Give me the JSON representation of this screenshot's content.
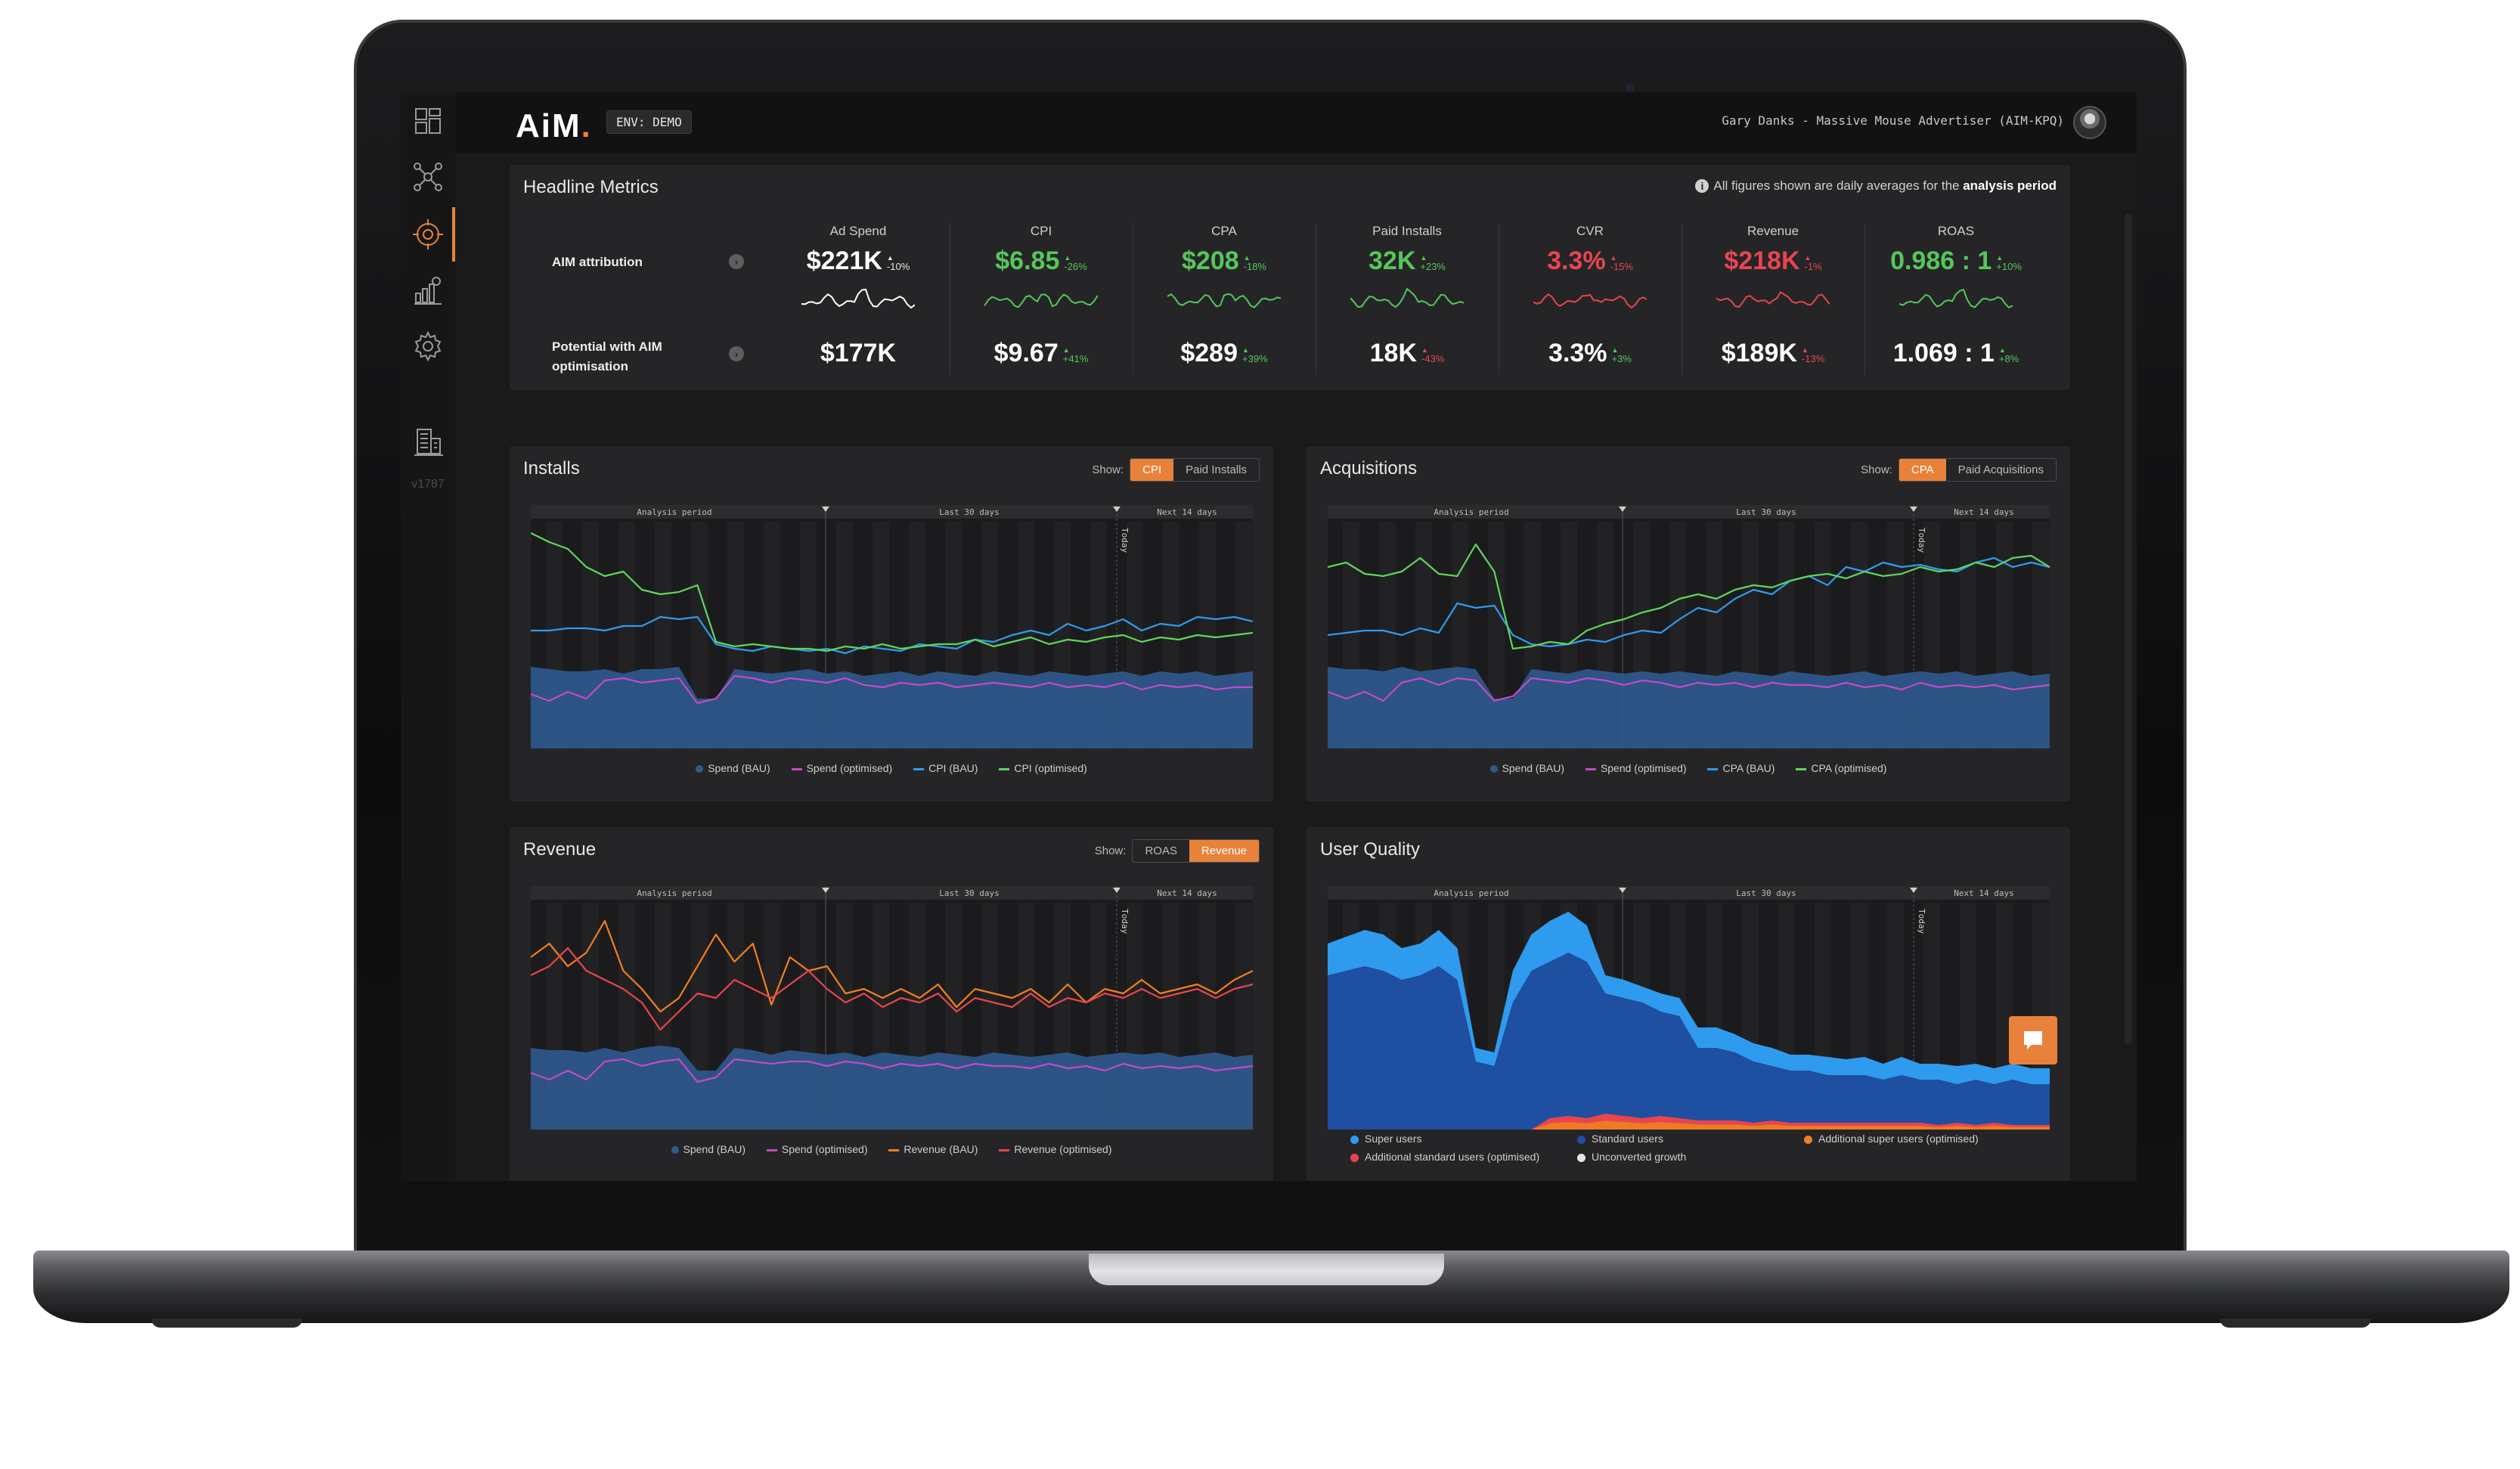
{
  "app": {
    "logo": "AiM",
    "env_badge": "ENV: DEMO",
    "user": "Gary Danks - Massive Mouse Advertiser (AIM-KPQ)",
    "version": "v1787"
  },
  "sidebar": {
    "icons": [
      "dashboard-icon",
      "network-icon",
      "target-icon",
      "analytics-icon",
      "settings-icon",
      "building-icon"
    ],
    "active_index": 2
  },
  "headline": {
    "title": "Headline Metrics",
    "info_prefix": "All figures shown are daily averages for the",
    "info_bold": "analysis period",
    "rows": [
      "AIM attribution",
      "Potential with AIM optimisation"
    ],
    "metrics": [
      {
        "label": "Ad Spend",
        "attr": "$221K",
        "attr_delta": "-10%",
        "attr_dir": "up",
        "attr_color": "white",
        "pot": "$177K",
        "pot_delta": "",
        "pot_dir": "",
        "pot_color": "white"
      },
      {
        "label": "CPI",
        "attr": "$6.85",
        "attr_delta": "-26%",
        "attr_dir": "up",
        "attr_color": "green",
        "pot": "$9.67",
        "pot_delta": "+41%",
        "pot_dir": "up",
        "pot_color": "white"
      },
      {
        "label": "CPA",
        "attr": "$208",
        "attr_delta": "-18%",
        "attr_dir": "up",
        "attr_color": "green",
        "pot": "$289",
        "pot_delta": "+39%",
        "pot_dir": "up",
        "pot_color": "white"
      },
      {
        "label": "Paid Installs",
        "attr": "32K",
        "attr_delta": "+23%",
        "attr_dir": "up",
        "attr_color": "green",
        "pot": "18K",
        "pot_delta": "-43%",
        "pot_dir": "up",
        "pot_color": "white"
      },
      {
        "label": "CVR",
        "attr": "3.3%",
        "attr_delta": "-15%",
        "attr_dir": "up",
        "attr_color": "red",
        "pot": "3.3%",
        "pot_delta": "+3%",
        "pot_dir": "up",
        "pot_color": "white"
      },
      {
        "label": "Revenue",
        "attr": "$218K",
        "attr_delta": "-1%",
        "attr_dir": "up",
        "attr_color": "red",
        "pot": "$189K",
        "pot_delta": "-13%",
        "pot_dir": "up",
        "pot_color": "white"
      },
      {
        "label": "ROAS",
        "attr": "0.986 : 1",
        "attr_delta": "+10%",
        "attr_dir": "up",
        "attr_color": "green",
        "pot": "1.069 : 1",
        "pot_delta": "+8%",
        "pot_dir": "up",
        "pot_color": "white"
      }
    ]
  },
  "chart_data": [
    {
      "type": "area",
      "title": "Installs",
      "show_label": "Show:",
      "toggle": [
        "CPI",
        "Paid Installs"
      ],
      "toggle_active": 0,
      "periods": [
        "Analysis period",
        "Last 30 days",
        "Next 14 days"
      ],
      "today_label": "Today",
      "legend": [
        "Spend (BAU)",
        "Spend (optimised)",
        "CPI (BAU)",
        "CPI (optimised)"
      ],
      "series": [
        {
          "name": "Spend (BAU)",
          "color": "#2f5a8f",
          "kind": "area",
          "values": [
            0.36,
            0.35,
            0.34,
            0.34,
            0.35,
            0.33,
            0.35,
            0.35,
            0.36,
            0.22,
            0.22,
            0.35,
            0.34,
            0.33,
            0.34,
            0.35,
            0.33,
            0.34,
            0.32,
            0.33,
            0.34,
            0.32,
            0.34,
            0.33,
            0.32,
            0.34,
            0.33,
            0.32,
            0.34,
            0.33,
            0.32,
            0.33,
            0.34,
            0.32,
            0.34,
            0.33,
            0.34,
            0.32,
            0.33,
            0.34
          ]
        },
        {
          "name": "Spend (optimised)",
          "color": "#c24ac7",
          "kind": "line",
          "values": [
            0.24,
            0.21,
            0.25,
            0.22,
            0.3,
            0.31,
            0.29,
            0.3,
            0.31,
            0.2,
            0.22,
            0.32,
            0.31,
            0.29,
            0.31,
            0.3,
            0.29,
            0.31,
            0.28,
            0.27,
            0.29,
            0.28,
            0.29,
            0.27,
            0.28,
            0.29,
            0.28,
            0.27,
            0.29,
            0.27,
            0.28,
            0.27,
            0.29,
            0.26,
            0.28,
            0.27,
            0.28,
            0.26,
            0.27,
            0.27
          ]
        },
        {
          "name": "CPI (BAU)",
          "color": "#2f9bef",
          "kind": "line",
          "values": [
            0.52,
            0.52,
            0.53,
            0.53,
            0.52,
            0.54,
            0.54,
            0.58,
            0.57,
            0.58,
            0.46,
            0.44,
            0.43,
            0.45,
            0.44,
            0.43,
            0.44,
            0.42,
            0.45,
            0.44,
            0.43,
            0.46,
            0.45,
            0.44,
            0.48,
            0.47,
            0.5,
            0.52,
            0.5,
            0.55,
            0.52,
            0.54,
            0.57,
            0.52,
            0.55,
            0.54,
            0.58,
            0.57,
            0.58,
            0.56
          ]
        },
        {
          "name": "CPI (optimised)",
          "color": "#5fd65b",
          "kind": "line",
          "values": [
            0.95,
            0.91,
            0.88,
            0.8,
            0.76,
            0.78,
            0.7,
            0.68,
            0.69,
            0.72,
            0.47,
            0.45,
            0.46,
            0.45,
            0.44,
            0.44,
            0.43,
            0.45,
            0.44,
            0.46,
            0.44,
            0.45,
            0.46,
            0.46,
            0.48,
            0.45,
            0.47,
            0.49,
            0.46,
            0.48,
            0.47,
            0.49,
            0.5,
            0.47,
            0.49,
            0.48,
            0.5,
            0.49,
            0.5,
            0.51
          ]
        }
      ]
    },
    {
      "type": "area",
      "title": "Acquisitions",
      "show_label": "Show:",
      "toggle": [
        "CPA",
        "Paid Acquisitions"
      ],
      "toggle_active": 0,
      "periods": [
        "Analysis period",
        "Last 30 days",
        "Next 14 days"
      ],
      "today_label": "Today",
      "legend": [
        "Spend (BAU)",
        "Spend (optimised)",
        "CPA (BAU)",
        "CPA (optimised)"
      ],
      "series": [
        {
          "name": "Spend (BAU)",
          "color": "#2f5a8f",
          "kind": "area",
          "values": [
            0.36,
            0.35,
            0.35,
            0.34,
            0.36,
            0.34,
            0.35,
            0.36,
            0.35,
            0.22,
            0.22,
            0.35,
            0.34,
            0.33,
            0.35,
            0.34,
            0.33,
            0.34,
            0.33,
            0.34,
            0.33,
            0.32,
            0.34,
            0.33,
            0.32,
            0.34,
            0.33,
            0.32,
            0.33,
            0.34,
            0.32,
            0.33,
            0.34,
            0.33,
            0.34,
            0.32,
            0.33,
            0.34,
            0.32,
            0.33
          ]
        },
        {
          "name": "Spend (optimised)",
          "color": "#c24ac7",
          "kind": "line",
          "values": [
            0.25,
            0.22,
            0.25,
            0.21,
            0.29,
            0.31,
            0.28,
            0.31,
            0.3,
            0.21,
            0.23,
            0.31,
            0.3,
            0.29,
            0.31,
            0.3,
            0.28,
            0.3,
            0.29,
            0.27,
            0.29,
            0.28,
            0.29,
            0.27,
            0.29,
            0.28,
            0.28,
            0.27,
            0.29,
            0.27,
            0.28,
            0.26,
            0.29,
            0.27,
            0.28,
            0.27,
            0.28,
            0.26,
            0.27,
            0.28
          ]
        },
        {
          "name": "CPA (BAU)",
          "color": "#2f9bef",
          "kind": "line",
          "values": [
            0.5,
            0.51,
            0.52,
            0.52,
            0.5,
            0.53,
            0.51,
            0.64,
            0.62,
            0.63,
            0.5,
            0.46,
            0.45,
            0.46,
            0.48,
            0.47,
            0.5,
            0.52,
            0.51,
            0.57,
            0.62,
            0.6,
            0.66,
            0.7,
            0.68,
            0.74,
            0.76,
            0.72,
            0.8,
            0.78,
            0.82,
            0.8,
            0.81,
            0.79,
            0.78,
            0.82,
            0.84,
            0.8,
            0.82,
            0.8
          ]
        },
        {
          "name": "CPA (optimised)",
          "color": "#5fd65b",
          "kind": "line",
          "values": [
            0.8,
            0.82,
            0.77,
            0.76,
            0.78,
            0.84,
            0.77,
            0.76,
            0.9,
            0.78,
            0.44,
            0.45,
            0.47,
            0.46,
            0.52,
            0.55,
            0.57,
            0.6,
            0.62,
            0.66,
            0.68,
            0.66,
            0.7,
            0.72,
            0.71,
            0.74,
            0.76,
            0.77,
            0.75,
            0.78,
            0.76,
            0.77,
            0.8,
            0.78,
            0.79,
            0.82,
            0.8,
            0.84,
            0.85,
            0.8
          ]
        }
      ]
    },
    {
      "type": "area",
      "title": "Revenue",
      "show_label": "Show:",
      "toggle": [
        "ROAS",
        "Revenue"
      ],
      "toggle_active": 1,
      "periods": [
        "Analysis period",
        "Last 30 days",
        "Next 14 days"
      ],
      "today_label": "Today",
      "legend": [
        "Spend (BAU)",
        "Spend (optimised)",
        "Revenue (BAU)",
        "Revenue (optimised)"
      ],
      "series": [
        {
          "name": "Spend (BAU)",
          "color": "#2f5a8f",
          "kind": "area",
          "values": [
            0.36,
            0.35,
            0.35,
            0.34,
            0.36,
            0.34,
            0.36,
            0.37,
            0.36,
            0.26,
            0.26,
            0.36,
            0.35,
            0.33,
            0.35,
            0.34,
            0.33,
            0.34,
            0.32,
            0.34,
            0.33,
            0.32,
            0.34,
            0.33,
            0.32,
            0.34,
            0.33,
            0.32,
            0.33,
            0.34,
            0.32,
            0.33,
            0.34,
            0.33,
            0.34,
            0.32,
            0.33,
            0.34,
            0.32,
            0.33
          ]
        },
        {
          "name": "Spend (optimised)",
          "color": "#c24ac7",
          "kind": "line",
          "values": [
            0.25,
            0.22,
            0.26,
            0.22,
            0.3,
            0.31,
            0.28,
            0.3,
            0.31,
            0.21,
            0.23,
            0.31,
            0.3,
            0.29,
            0.3,
            0.3,
            0.28,
            0.3,
            0.29,
            0.27,
            0.29,
            0.28,
            0.29,
            0.27,
            0.29,
            0.28,
            0.28,
            0.27,
            0.29,
            0.27,
            0.28,
            0.26,
            0.29,
            0.27,
            0.28,
            0.27,
            0.28,
            0.26,
            0.27,
            0.28
          ]
        },
        {
          "name": "Revenue (BAU)",
          "color": "#f07f1f",
          "kind": "line",
          "values": [
            0.76,
            0.82,
            0.72,
            0.78,
            0.92,
            0.7,
            0.62,
            0.52,
            0.58,
            0.72,
            0.86,
            0.74,
            0.82,
            0.55,
            0.76,
            0.7,
            0.72,
            0.6,
            0.62,
            0.58,
            0.62,
            0.58,
            0.64,
            0.54,
            0.62,
            0.6,
            0.58,
            0.62,
            0.56,
            0.64,
            0.56,
            0.62,
            0.6,
            0.66,
            0.6,
            0.62,
            0.64,
            0.6,
            0.66,
            0.7
          ]
        },
        {
          "name": "Revenue (optimised)",
          "color": "#e8454f",
          "kind": "line",
          "values": [
            0.68,
            0.72,
            0.8,
            0.7,
            0.66,
            0.62,
            0.56,
            0.44,
            0.52,
            0.6,
            0.58,
            0.66,
            0.62,
            0.58,
            0.64,
            0.7,
            0.62,
            0.56,
            0.6,
            0.54,
            0.58,
            0.56,
            0.6,
            0.52,
            0.58,
            0.56,
            0.54,
            0.6,
            0.54,
            0.58,
            0.56,
            0.6,
            0.58,
            0.62,
            0.58,
            0.6,
            0.62,
            0.58,
            0.62,
            0.64
          ]
        }
      ]
    },
    {
      "type": "area",
      "title": "User Quality",
      "periods": [
        "Analysis period",
        "Last 30 days",
        "Next 14 days"
      ],
      "today_label": "Today",
      "legend": [
        "Super users",
        "Standard users",
        "Additional super users (optimised)",
        "Additional standard users (optimised)",
        "Unconverted growth"
      ],
      "series": [
        {
          "name": "Standard users",
          "color": "#1f4fa0",
          "kind": "stack",
          "values": [
            0.68,
            0.7,
            0.72,
            0.7,
            0.66,
            0.68,
            0.72,
            0.66,
            0.3,
            0.28,
            0.56,
            0.7,
            0.74,
            0.78,
            0.74,
            0.6,
            0.58,
            0.56,
            0.52,
            0.5,
            0.36,
            0.36,
            0.34,
            0.3,
            0.28,
            0.26,
            0.26,
            0.24,
            0.24,
            0.24,
            0.22,
            0.24,
            0.22,
            0.22,
            0.2,
            0.22,
            0.2,
            0.22,
            0.2,
            0.2
          ]
        },
        {
          "name": "Super users",
          "color": "#2f9bef",
          "kind": "stack",
          "values": [
            0.14,
            0.15,
            0.16,
            0.16,
            0.14,
            0.14,
            0.16,
            0.14,
            0.06,
            0.06,
            0.14,
            0.16,
            0.18,
            0.18,
            0.16,
            0.08,
            0.08,
            0.07,
            0.08,
            0.08,
            0.09,
            0.09,
            0.08,
            0.08,
            0.08,
            0.07,
            0.07,
            0.08,
            0.07,
            0.08,
            0.07,
            0.08,
            0.07,
            0.07,
            0.08,
            0.07,
            0.07,
            0.07,
            0.07,
            0.07
          ]
        },
        {
          "name": "Additional standard users (optimised)",
          "color": "#e8454f",
          "kind": "stack_base",
          "values": [
            0,
            0,
            0,
            0,
            0,
            0,
            0,
            0,
            0,
            0,
            0,
            0,
            0.05,
            0.06,
            0.05,
            0.07,
            0.06,
            0.05,
            0.06,
            0.05,
            0.04,
            0.04,
            0.04,
            0.03,
            0.04,
            0.03,
            0.03,
            0.03,
            0.03,
            0.03,
            0.03,
            0.03,
            0.03,
            0.02,
            0.03,
            0.02,
            0.03,
            0.02,
            0.02,
            0.02
          ]
        }
      ]
    }
  ],
  "colors": {
    "accent": "#e8823a",
    "green": "#55c75a",
    "red": "#e8454f",
    "blue": "#2f9bef",
    "navy": "#2f5a8f",
    "purple": "#c24ac7"
  }
}
